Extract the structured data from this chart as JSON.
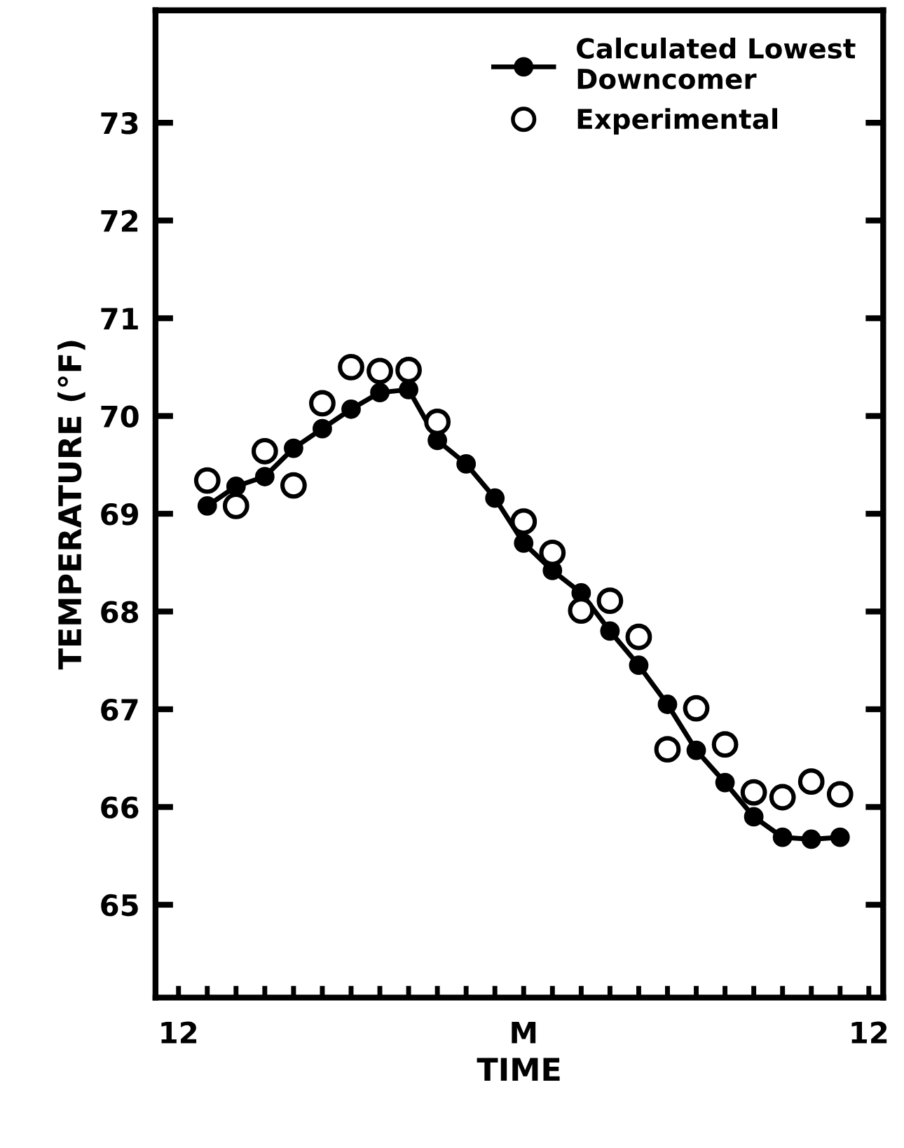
{
  "chart_data": {
    "type": "line",
    "xlabel": "TIME",
    "ylabel": "TEMPERATURE (°F)",
    "categories": [
      "12",
      null,
      null,
      null,
      null,
      null,
      null,
      null,
      null,
      null,
      null,
      null,
      "M",
      null,
      null,
      null,
      null,
      null,
      null,
      null,
      null,
      null,
      null,
      null,
      "12"
    ],
    "ylim": [
      64.05,
      74.15
    ],
    "yticks": [
      65,
      66,
      67,
      68,
      69,
      70,
      71,
      72,
      73
    ],
    "grid": false,
    "legend": "top right",
    "marker": "circle",
    "line_style": "solid",
    "series": [
      {
        "name": "Calculated Lowest\nDowncomer",
        "color": "#000000",
        "values": [
          null,
          69.08,
          69.28,
          69.38,
          69.67,
          69.87,
          70.07,
          70.24,
          70.27,
          69.75,
          69.51,
          69.16,
          68.7,
          68.42,
          68.19,
          67.8,
          67.45,
          67.05,
          66.58,
          66.25,
          65.9,
          65.69,
          65.67,
          65.69,
          null
        ]
      },
      {
        "name": "Experimental",
        "type": "scatter",
        "color": "#000000",
        "values": [
          null,
          69.34,
          69.08,
          69.64,
          69.29,
          70.13,
          70.5,
          70.46,
          70.47,
          69.94,
          null,
          null,
          68.92,
          68.6,
          68.01,
          68.11,
          67.74,
          66.59,
          67.01,
          66.64,
          66.15,
          66.1,
          66.26,
          66.13,
          null
        ]
      }
    ]
  }
}
